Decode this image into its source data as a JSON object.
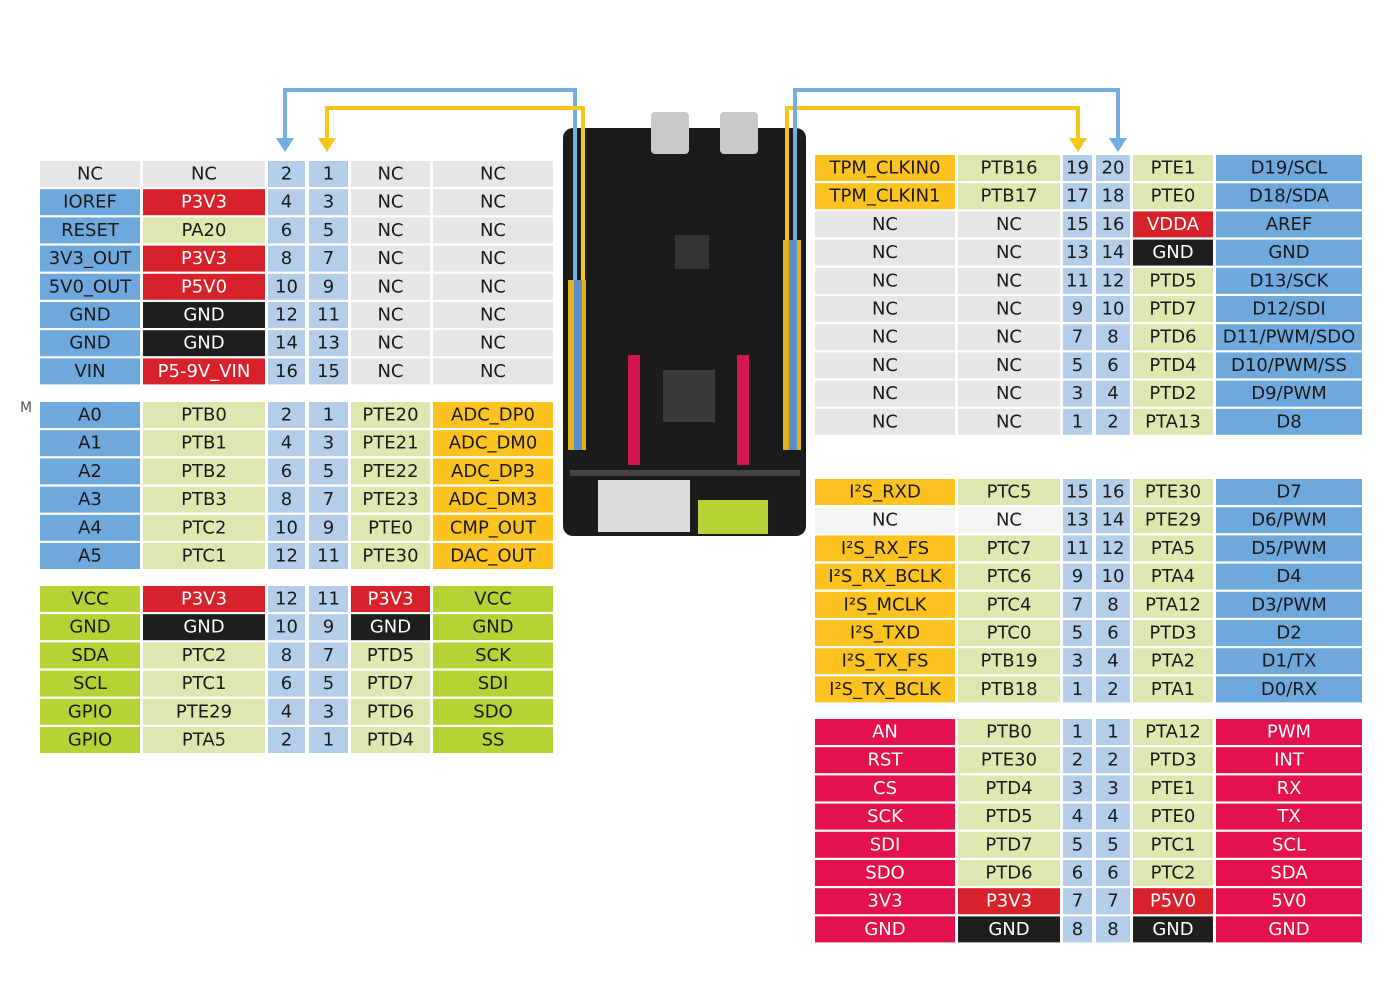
{
  "side_label": "M",
  "tables": [
    {
      "rows": [
        [
          "NC",
          "NC",
          "2",
          "1",
          "NC",
          "NC"
        ],
        [
          "IOREF",
          "P3V3",
          "4",
          "3",
          "NC",
          "NC"
        ],
        [
          "RESET",
          "PA20",
          "6",
          "5",
          "NC",
          "NC"
        ],
        [
          "3V3_OUT",
          "P3V3",
          "8",
          "7",
          "NC",
          "NC"
        ],
        [
          "5V0_OUT",
          "P5V0",
          "10",
          "9",
          "NC",
          "NC"
        ],
        [
          "GND",
          "GND",
          "12",
          "11",
          "NC",
          "NC"
        ],
        [
          "GND",
          "GND",
          "14",
          "13",
          "NC",
          "NC"
        ],
        [
          "VIN",
          "P5-9V_VIN",
          "16",
          "15",
          "NC",
          "NC"
        ]
      ],
      "colors": [
        [
          "#e6e6e6",
          "#e6e6e6",
          "#b4cde8",
          "#b4cde8",
          "#e6e6e6",
          "#e6e6e6"
        ],
        [
          "#6fa8dc",
          "#d7222b",
          "#b4cde8",
          "#b4cde8",
          "#e6e6e6",
          "#e6e6e6"
        ],
        [
          "#6fa8dc",
          "#dde8b0",
          "#b4cde8",
          "#b4cde8",
          "#e6e6e6",
          "#e6e6e6"
        ],
        [
          "#6fa8dc",
          "#d7222b",
          "#b4cde8",
          "#b4cde8",
          "#e6e6e6",
          "#e6e6e6"
        ],
        [
          "#6fa8dc",
          "#d7222b",
          "#b4cde8",
          "#b4cde8",
          "#e6e6e6",
          "#e6e6e6"
        ],
        [
          "#6fa8dc",
          "#1e1e1e",
          "#b4cde8",
          "#b4cde8",
          "#e6e6e6",
          "#e6e6e6"
        ],
        [
          "#6fa8dc",
          "#1e1e1e",
          "#b4cde8",
          "#b4cde8",
          "#e6e6e6",
          "#e6e6e6"
        ],
        [
          "#6fa8dc",
          "#d7222b",
          "#b4cde8",
          "#b4cde8",
          "#e6e6e6",
          "#e6e6e6"
        ]
      ]
    },
    {
      "rows": [
        [
          "A0",
          "PTB0",
          "2",
          "1",
          "PTE20",
          "ADC_DP0"
        ],
        [
          "A1",
          "PTB1",
          "4",
          "3",
          "PTE21",
          "ADC_DM0"
        ],
        [
          "A2",
          "PTB2",
          "6",
          "5",
          "PTE22",
          "ADC_DP3"
        ],
        [
          "A3",
          "PTB3",
          "8",
          "7",
          "PTE23",
          "ADC_DM3"
        ],
        [
          "A4",
          "PTC2",
          "10",
          "9",
          "PTE0",
          "CMP_OUT"
        ],
        [
          "A5",
          "PTC1",
          "12",
          "11",
          "PTE30",
          "DAC_OUT"
        ]
      ],
      "colors": [
        [
          "#6fa8dc",
          "#dde8b0",
          "#b4cde8",
          "#b4cde8",
          "#dde8b0",
          "#fcc21f"
        ],
        [
          "#6fa8dc",
          "#dde8b0",
          "#b4cde8",
          "#b4cde8",
          "#dde8b0",
          "#fcc21f"
        ],
        [
          "#6fa8dc",
          "#dde8b0",
          "#b4cde8",
          "#b4cde8",
          "#dde8b0",
          "#fcc21f"
        ],
        [
          "#6fa8dc",
          "#dde8b0",
          "#b4cde8",
          "#b4cde8",
          "#dde8b0",
          "#fcc21f"
        ],
        [
          "#6fa8dc",
          "#dde8b0",
          "#b4cde8",
          "#b4cde8",
          "#dde8b0",
          "#fcc21f"
        ],
        [
          "#6fa8dc",
          "#dde8b0",
          "#b4cde8",
          "#b4cde8",
          "#dde8b0",
          "#fcc21f"
        ]
      ]
    },
    {
      "rows": [
        [
          "VCC",
          "P3V3",
          "12",
          "11",
          "P3V3",
          "VCC"
        ],
        [
          "GND",
          "GND",
          "10",
          "9",
          "GND",
          "GND"
        ],
        [
          "SDA",
          "PTC2",
          "8",
          "7",
          "PTD5",
          "SCK"
        ],
        [
          "SCL",
          "PTC1",
          "6",
          "5",
          "PTD7",
          "SDI"
        ],
        [
          "GPIO",
          "PTE29",
          "4",
          "3",
          "PTD6",
          "SDO"
        ],
        [
          "GPIO",
          "PTA5",
          "2",
          "1",
          "PTD4",
          "SS"
        ]
      ],
      "colors": [
        [
          "#b5d334",
          "#d7222b",
          "#b4cde8",
          "#b4cde8",
          "#d7222b",
          "#b5d334"
        ],
        [
          "#b5d334",
          "#1e1e1e",
          "#b4cde8",
          "#b4cde8",
          "#1e1e1e",
          "#b5d334"
        ],
        [
          "#b5d334",
          "#dde8b0",
          "#b4cde8",
          "#b4cde8",
          "#dde8b0",
          "#b5d334"
        ],
        [
          "#b5d334",
          "#dde8b0",
          "#b4cde8",
          "#b4cde8",
          "#dde8b0",
          "#b5d334"
        ],
        [
          "#b5d334",
          "#dde8b0",
          "#b4cde8",
          "#b4cde8",
          "#dde8b0",
          "#b5d334"
        ],
        [
          "#b5d334",
          "#dde8b0",
          "#b4cde8",
          "#b4cde8",
          "#dde8b0",
          "#b5d334"
        ]
      ]
    },
    {
      "rows": [
        [
          "TPM_CLKIN0",
          "PTB16",
          "19",
          "20",
          "PTE1",
          "D19/SCL"
        ],
        [
          "TPM_CLKIN1",
          "PTB17",
          "17",
          "18",
          "PTE0",
          "D18/SDA"
        ],
        [
          "NC",
          "NC",
          "15",
          "16",
          "VDDA",
          "AREF"
        ],
        [
          "NC",
          "NC",
          "13",
          "14",
          "GND",
          "GND"
        ],
        [
          "NC",
          "NC",
          "11",
          "12",
          "PTD5",
          "D13/SCK"
        ],
        [
          "NC",
          "NC",
          "9",
          "10",
          "PTD7",
          "D12/SDI"
        ],
        [
          "NC",
          "NC",
          "7",
          "8",
          "PTD6",
          "D11/PWM/SDO"
        ],
        [
          "NC",
          "NC",
          "5",
          "6",
          "PTD4",
          "D10/PWM/SS"
        ],
        [
          "NC",
          "NC",
          "3",
          "4",
          "PTD2",
          "D9/PWM"
        ],
        [
          "NC",
          "NC",
          "1",
          "2",
          "PTA13",
          "D8"
        ]
      ],
      "colors": [
        [
          "#fcc21f",
          "#dde8b0",
          "#b4cde8",
          "#b4cde8",
          "#dde8b0",
          "#6fa8dc"
        ],
        [
          "#fcc21f",
          "#dde8b0",
          "#b4cde8",
          "#b4cde8",
          "#dde8b0",
          "#6fa8dc"
        ],
        [
          "#e6e6e6",
          "#e6e6e6",
          "#b4cde8",
          "#b4cde8",
          "#d7222b",
          "#6fa8dc"
        ],
        [
          "#e6e6e6",
          "#e6e6e6",
          "#b4cde8",
          "#b4cde8",
          "#1e1e1e",
          "#6fa8dc"
        ],
        [
          "#e6e6e6",
          "#e6e6e6",
          "#b4cde8",
          "#b4cde8",
          "#dde8b0",
          "#6fa8dc"
        ],
        [
          "#e6e6e6",
          "#e6e6e6",
          "#b4cde8",
          "#b4cde8",
          "#dde8b0",
          "#6fa8dc"
        ],
        [
          "#e6e6e6",
          "#e6e6e6",
          "#b4cde8",
          "#b4cde8",
          "#dde8b0",
          "#6fa8dc"
        ],
        [
          "#e6e6e6",
          "#e6e6e6",
          "#b4cde8",
          "#b4cde8",
          "#dde8b0",
          "#6fa8dc"
        ],
        [
          "#e6e6e6",
          "#e6e6e6",
          "#b4cde8",
          "#b4cde8",
          "#dde8b0",
          "#6fa8dc"
        ],
        [
          "#e6e6e6",
          "#e6e6e6",
          "#b4cde8",
          "#b4cde8",
          "#dde8b0",
          "#6fa8dc"
        ]
      ]
    },
    {
      "rows": [
        [
          "I²S_RXD",
          "PTC5",
          "15",
          "16",
          "PTE30",
          "D7"
        ],
        [
          "NC",
          "NC",
          "13",
          "14",
          "PTE29",
          "D6/PWM"
        ],
        [
          "I²S_RX_FS",
          "PTC7",
          "11",
          "12",
          "PTA5",
          "D5/PWM"
        ],
        [
          "I²S_RX_BCLK",
          "PTC6",
          "9",
          "10",
          "PTA4",
          "D4"
        ],
        [
          "I²S_MCLK",
          "PTC4",
          "7",
          "8",
          "PTA12",
          "D3/PWM"
        ],
        [
          "I²S_TXD",
          "PTC0",
          "5",
          "6",
          "PTD3",
          "D2"
        ],
        [
          "I²S_TX_FS",
          "PTB19",
          "3",
          "4",
          "PTA2",
          "D1/TX"
        ],
        [
          "I²S_TX_BCLK",
          "PTB18",
          "1",
          "2",
          "PTA1",
          "D0/RX"
        ]
      ],
      "colors": [
        [
          "#fcc21f",
          "#dde8b0",
          "#b4cde8",
          "#b4cde8",
          "#dde8b0",
          "#6fa8dc"
        ],
        [
          "#f4f4f4",
          "#f4f4f4",
          "#b4cde8",
          "#b4cde8",
          "#dde8b0",
          "#6fa8dc"
        ],
        [
          "#fcc21f",
          "#dde8b0",
          "#b4cde8",
          "#b4cde8",
          "#dde8b0",
          "#6fa8dc"
        ],
        [
          "#fcc21f",
          "#dde8b0",
          "#b4cde8",
          "#b4cde8",
          "#dde8b0",
          "#6fa8dc"
        ],
        [
          "#fcc21f",
          "#dde8b0",
          "#b4cde8",
          "#b4cde8",
          "#dde8b0",
          "#6fa8dc"
        ],
        [
          "#fcc21f",
          "#dde8b0",
          "#b4cde8",
          "#b4cde8",
          "#dde8b0",
          "#6fa8dc"
        ],
        [
          "#fcc21f",
          "#dde8b0",
          "#b4cde8",
          "#b4cde8",
          "#dde8b0",
          "#6fa8dc"
        ],
        [
          "#fcc21f",
          "#dde8b0",
          "#b4cde8",
          "#b4cde8",
          "#dde8b0",
          "#6fa8dc"
        ]
      ]
    },
    {
      "rows": [
        [
          "AN",
          "PTB0",
          "1",
          "1",
          "PTA12",
          "PWM"
        ],
        [
          "RST",
          "PTE30",
          "2",
          "2",
          "PTD3",
          "INT"
        ],
        [
          "CS",
          "PTD4",
          "3",
          "3",
          "PTE1",
          "RX"
        ],
        [
          "SCK",
          "PTD5",
          "4",
          "4",
          "PTE0",
          "TX"
        ],
        [
          "SDI",
          "PTD7",
          "5",
          "5",
          "PTC1",
          "SCL"
        ],
        [
          "SDO",
          "PTD6",
          "6",
          "6",
          "PTC2",
          "SDA"
        ],
        [
          "3V3",
          "P3V3",
          "7",
          "7",
          "P5V0",
          "5V0"
        ],
        [
          "GND",
          "GND",
          "8",
          "8",
          "GND",
          "GND"
        ]
      ],
      "colors": [
        [
          "#e5114d",
          "#dde8b0",
          "#b4cde8",
          "#b4cde8",
          "#dde8b0",
          "#e5114d"
        ],
        [
          "#e5114d",
          "#dde8b0",
          "#b4cde8",
          "#b4cde8",
          "#dde8b0",
          "#e5114d"
        ],
        [
          "#e5114d",
          "#dde8b0",
          "#b4cde8",
          "#b4cde8",
          "#dde8b0",
          "#e5114d"
        ],
        [
          "#e5114d",
          "#dde8b0",
          "#b4cde8",
          "#b4cde8",
          "#dde8b0",
          "#e5114d"
        ],
        [
          "#e5114d",
          "#dde8b0",
          "#b4cde8",
          "#b4cde8",
          "#dde8b0",
          "#e5114d"
        ],
        [
          "#e5114d",
          "#dde8b0",
          "#b4cde8",
          "#b4cde8",
          "#dde8b0",
          "#e5114d"
        ],
        [
          "#e5114d",
          "#d7222b",
          "#b4cde8",
          "#b4cde8",
          "#d7222b",
          "#e5114d"
        ],
        [
          "#e5114d",
          "#1e1e1e",
          "#b4cde8",
          "#b4cde8",
          "#1e1e1e",
          "#e5114d"
        ]
      ]
    }
  ]
}
